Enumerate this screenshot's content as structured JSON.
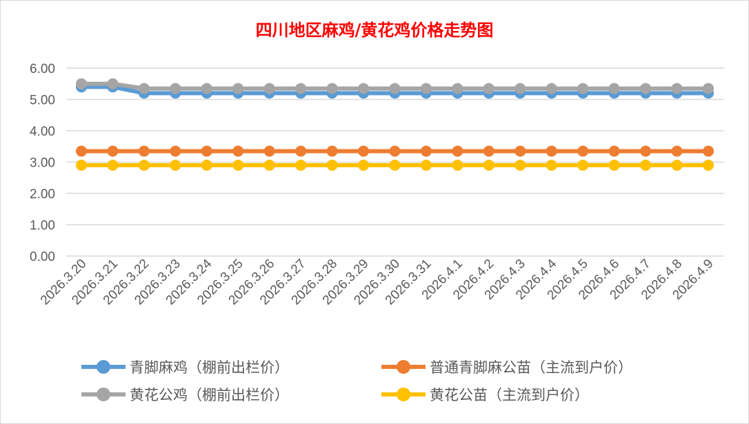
{
  "chart_data": {
    "type": "line",
    "title": "四川地区麻鸡/黄花鸡价格走势图",
    "xlabel": "",
    "ylabel": "",
    "ylim": [
      0,
      6
    ],
    "yticks": [
      "0.00",
      "1.00",
      "2.00",
      "3.00",
      "4.00",
      "5.00",
      "6.00"
    ],
    "grid": true,
    "legend_position": "bottom",
    "categories": [
      "2026.3.20",
      "2026.3.21",
      "2026.3.22",
      "2026.3.23",
      "2026.3.24",
      "2026.3.25",
      "2026.3.26",
      "2026.3.27",
      "2026.3.28",
      "2026.3.29",
      "2026.3.30",
      "2026.3.31",
      "2026.4.1",
      "2026.4.2",
      "2026.4.3",
      "2026.4.4",
      "2026.4.5",
      "2026.4.6",
      "2026.4.7",
      "2026.4.8",
      "2026.4.9"
    ],
    "series": [
      {
        "name": "青脚麻鸡（棚前出栏价）",
        "color": "#5b9bd5",
        "values": [
          5.4,
          5.4,
          5.2,
          5.2,
          5.2,
          5.2,
          5.2,
          5.2,
          5.2,
          5.2,
          5.2,
          5.2,
          5.2,
          5.2,
          5.2,
          5.2,
          5.2,
          5.2,
          5.2,
          5.2,
          5.2
        ]
      },
      {
        "name": "普通青脚麻公苗（主流到户价）",
        "color": "#ed7d31",
        "values": [
          3.35,
          3.35,
          3.35,
          3.35,
          3.35,
          3.35,
          3.35,
          3.35,
          3.35,
          3.35,
          3.35,
          3.35,
          3.35,
          3.35,
          3.35,
          3.35,
          3.35,
          3.35,
          3.35,
          3.35,
          3.35
        ]
      },
      {
        "name": "黄花公鸡（棚前出栏价）",
        "color": "#a5a5a5",
        "values": [
          5.5,
          5.5,
          5.35,
          5.35,
          5.35,
          5.35,
          5.35,
          5.35,
          5.35,
          5.35,
          5.35,
          5.35,
          5.35,
          5.35,
          5.35,
          5.35,
          5.35,
          5.35,
          5.35,
          5.35,
          5.35
        ]
      },
      {
        "name": "黄花公苗（主流到户价）",
        "color": "#ffc000",
        "values": [
          2.9,
          2.9,
          2.9,
          2.9,
          2.9,
          2.9,
          2.9,
          2.9,
          2.9,
          2.9,
          2.9,
          2.9,
          2.9,
          2.9,
          2.9,
          2.9,
          2.9,
          2.9,
          2.9,
          2.9,
          2.9
        ]
      }
    ]
  }
}
